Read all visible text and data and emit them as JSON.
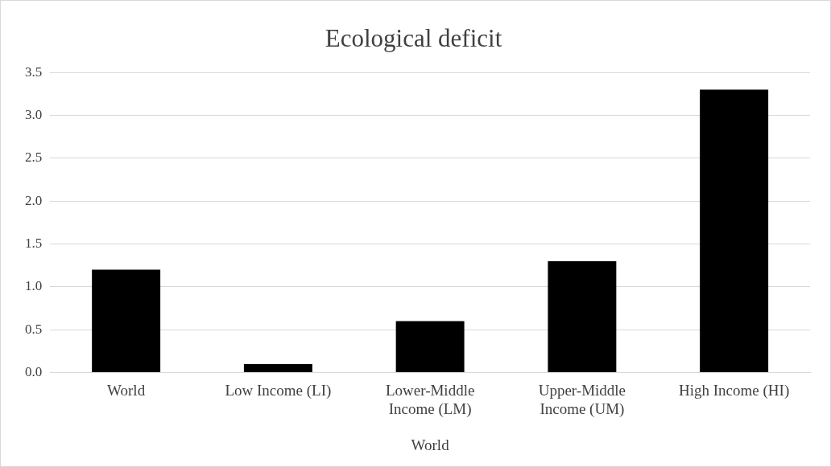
{
  "chart_data": {
    "type": "bar",
    "title": "Ecological deficit",
    "xlabel": "World",
    "categories": [
      "World",
      "Low Income (LI)",
      "Lower-Middle Income (LM)",
      "Upper-Middle Income (UM)",
      "High Income (HI)"
    ],
    "values": [
      1.2,
      0.1,
      0.6,
      1.3,
      3.3
    ],
    "color": "#000000",
    "ylim": [
      0,
      3.5
    ],
    "yticks": [
      {
        "value": 0,
        "label": "0.0"
      },
      {
        "value": 0.5,
        "label": "0.5"
      },
      {
        "value": 1,
        "label": "1.0"
      },
      {
        "value": 1.5,
        "label": "1.5"
      },
      {
        "value": 2,
        "label": "2.0"
      },
      {
        "value": 2.5,
        "label": "2.5"
      },
      {
        "value": 3,
        "label": "3.0"
      },
      {
        "value": 3.5,
        "label": "3.5"
      }
    ],
    "grid": "y"
  }
}
